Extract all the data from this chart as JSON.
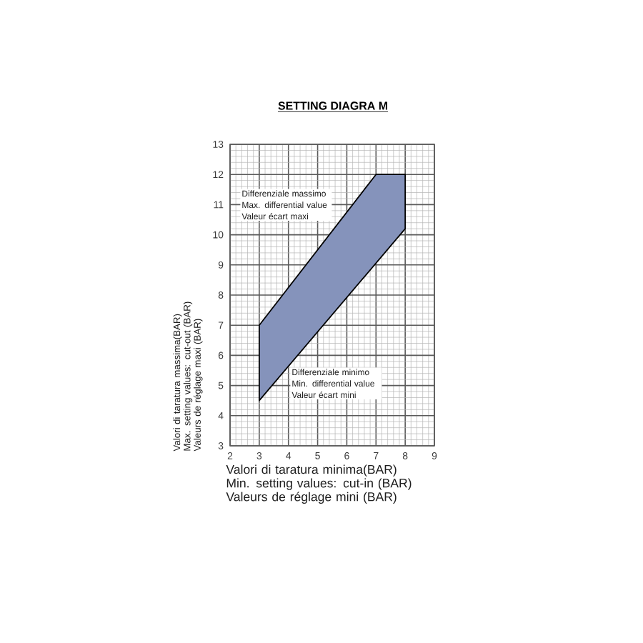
{
  "chart_data": {
    "type": "area",
    "title": "SETTING DIAGRA M",
    "xlabel": "Valori di taratura minima(BAR)\nMin. setting values: cut-in (BAR)\nValeurs de réglage mini (BAR)",
    "ylabel": "Valori di taratura massima(BAR)\nMax. setting values: cut-out (BAR)\nValeurs de réglage maxi (BAR)",
    "series": [
      {
        "color": "#8593bb",
        "x": [
          3,
          3,
          7,
          8,
          8
        ],
        "values": [
          4.5,
          7,
          12,
          12,
          10.2
        ]
      }
    ],
    "xlim": [
      2,
      9
    ],
    "ylim": [
      3,
      13
    ],
    "xticks": [
      2,
      3,
      4,
      5,
      6,
      7,
      8,
      9
    ],
    "yticks": [
      3,
      4,
      5,
      6,
      7,
      8,
      9,
      10,
      11,
      12,
      13
    ],
    "grid": true,
    "annotations": [
      "Differenziale massimo\nMax. differential value\nValeur écart maxi",
      "Differenziale minimo\nMin. differential value\nValeur écart mini"
    ]
  }
}
